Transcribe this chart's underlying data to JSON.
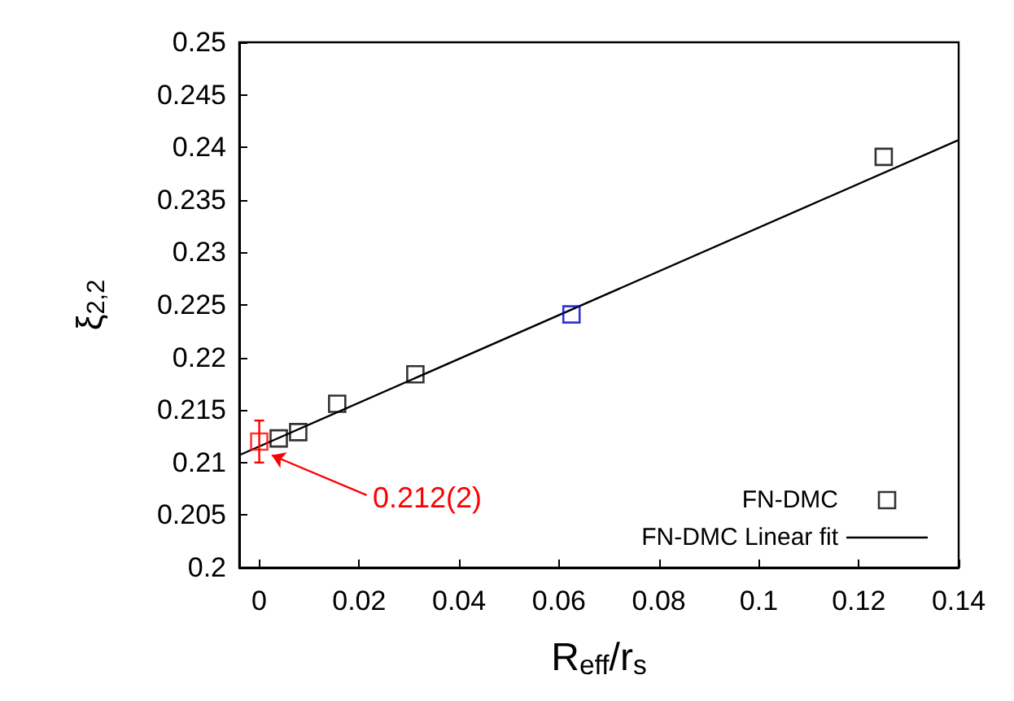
{
  "chart_data": {
    "type": "scatter",
    "xlabel": "R$_{eff}$/r$_{s}$",
    "ylabel": "ξ$_{2,2}$",
    "xlim": [
      -0.004,
      0.14
    ],
    "xticks": [
      0,
      0.02,
      0.04,
      0.06,
      0.08,
      0.1,
      0.12,
      0.14
    ],
    "ylim": [
      0.2,
      0.25
    ],
    "yticks": [
      0.2,
      0.205,
      0.21,
      0.215,
      0.22,
      0.225,
      0.23,
      0.235,
      0.24,
      0.245,
      0.25
    ],
    "grid": false,
    "legend": "bottom right",
    "series": [
      {
        "name": "FN-DMC",
        "marker": "square",
        "color": "#000000",
        "x": [
          0,
          0.0039,
          0.0078,
          0.0156,
          0.03125,
          0.0625,
          0.125
        ],
        "values": [
          0.212,
          0.2123,
          0.2129,
          0.2156,
          0.2184,
          0.2241,
          0.2391
        ],
        "colors": [
          "#ff0000",
          "#000000",
          "#000000",
          "#000000",
          "#000000",
          "#0000cc",
          "#000000"
        ],
        "errors": [
          0.002,
          null,
          null,
          null,
          null,
          null,
          null
        ]
      },
      {
        "name": "FN-DMC Linear fit",
        "type": "line",
        "color": "#000000",
        "x": [
          -0.004,
          0.14
        ],
        "values": [
          0.2107,
          0.2407
        ],
        "line_style": "solid",
        "marker": "none"
      }
    ],
    "annotations": [
      {
        "text": "0.212(2)",
        "x": 0.0025,
        "y": 0.2107
      }
    ]
  }
}
